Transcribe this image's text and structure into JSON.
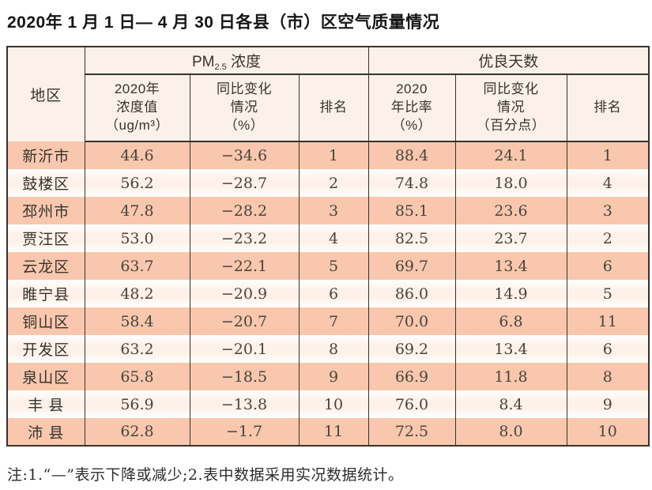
{
  "page": {
    "title": "2020年 1 月 1 日— 4 月 30 日各县（市）区空气质量情况",
    "footnote": "注:1.“—”表示下降或减少;2.表中数据采用实况数据统计。"
  },
  "table": {
    "group_headers": {
      "region": "地区",
      "pm25_prefix": "PM",
      "pm25_sub": "2.5",
      "pm25_suffix": " 浓度",
      "good_days": "优良天数"
    },
    "sub_headers": {
      "pm_value": "2020年\n浓度值\n（ug/m³）",
      "pm_change": "同比变化\n情况\n（%）",
      "pm_rank": "排名",
      "days_rate": "2020\n年比率\n（%）",
      "days_change": "同比变化\n情况\n（百分点）",
      "days_rank": "排名"
    },
    "columns_order": [
      "region",
      "pm_value",
      "pm_change",
      "pm_rank",
      "days_rate",
      "days_change",
      "days_rank"
    ],
    "rows": [
      {
        "region": "新沂市",
        "pm_value": "44.6",
        "pm_change": "−34.6",
        "pm_rank": "1",
        "days_rate": "88.4",
        "days_change": "24.1",
        "days_rank": "1"
      },
      {
        "region": "鼓楼区",
        "pm_value": "56.2",
        "pm_change": "−28.7",
        "pm_rank": "2",
        "days_rate": "74.8",
        "days_change": "18.0",
        "days_rank": "4"
      },
      {
        "region": "邳州市",
        "pm_value": "47.8",
        "pm_change": "−28.2",
        "pm_rank": "3",
        "days_rate": "85.1",
        "days_change": "23.6",
        "days_rank": "3"
      },
      {
        "region": "贾汪区",
        "pm_value": "53.0",
        "pm_change": "−23.2",
        "pm_rank": "4",
        "days_rate": "82.5",
        "days_change": "23.7",
        "days_rank": "2"
      },
      {
        "region": "云龙区",
        "pm_value": "63.7",
        "pm_change": "−22.1",
        "pm_rank": "5",
        "days_rate": "69.7",
        "days_change": "13.4",
        "days_rank": "6"
      },
      {
        "region": "睢宁县",
        "pm_value": "48.2",
        "pm_change": "−20.9",
        "pm_rank": "6",
        "days_rate": "86.0",
        "days_change": "14.9",
        "days_rank": "5"
      },
      {
        "region": "铜山区",
        "pm_value": "58.4",
        "pm_change": "−20.7",
        "pm_rank": "7",
        "days_rate": "70.0",
        "days_change": "6.8",
        "days_rank": "11"
      },
      {
        "region": "开发区",
        "pm_value": "63.2",
        "pm_change": "−20.1",
        "pm_rank": "8",
        "days_rate": "69.2",
        "days_change": "13.4",
        "days_rank": "6"
      },
      {
        "region": "泉山区",
        "pm_value": "65.8",
        "pm_change": "−18.5",
        "pm_rank": "9",
        "days_rate": "66.9",
        "days_change": "11.8",
        "days_rank": "8"
      },
      {
        "region": "丰 县",
        "pm_value": "56.9",
        "pm_change": "−13.8",
        "pm_rank": "10",
        "days_rate": "76.0",
        "days_change": "8.4",
        "days_rank": "9"
      },
      {
        "region": "沛 县",
        "pm_value": "62.8",
        "pm_change": "−1.7",
        "pm_rank": "11",
        "days_rate": "72.5",
        "days_change": "8.0",
        "days_rank": "10"
      }
    ]
  },
  "colors": {
    "border": "#3a322c",
    "header_bg": "#fbf1ea",
    "row_salmon": "#f8c7ad",
    "row_cream": "#fdf1e9",
    "text_dark": "#37332e",
    "text_number": "#4a443c"
  }
}
